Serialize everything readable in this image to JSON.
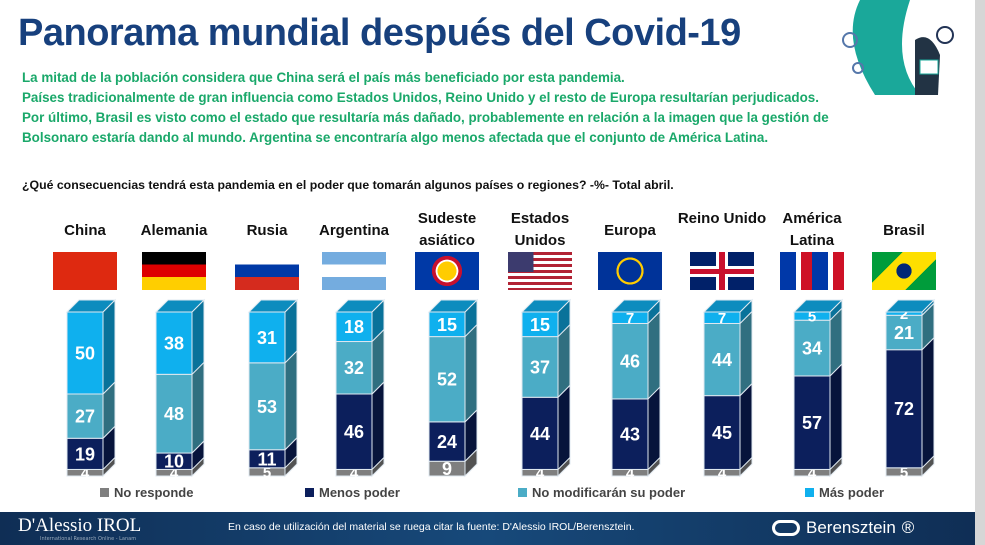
{
  "header": {
    "title": "Panorama mundial después del Covid-19",
    "subtitle": [
      "La mitad de la población considera que China será el país más beneficiado por esta  pandemia.",
      "Países tradicionalmente de gran influencia como Estados Unidos, Reino Unido y el resto de Europa resultarían perjudicados. Por último, Brasil es visto como el estado que resultaría más dañado, probablemente en relación a la imagen que la gestión de Bolsonaro estaría dando al mundo. Argentina se encontraría algo menos afectada que el conjunto de América Latina."
    ],
    "question": "¿Qué consecuencias tendrá esta pandemia en el poder que tomarán algunos países o regiones? -%- Total abril."
  },
  "chart_data": {
    "type": "bar",
    "stacked": true,
    "title": "",
    "categories": [
      "China",
      "Alemania",
      "Rusia",
      "Argentina",
      "Sudeste asiático",
      "Estados Unidos",
      "Europa",
      "Reino Unido",
      "América Latina",
      "Brasil"
    ],
    "series": [
      {
        "name": "No responde",
        "color": "#7f7f7f",
        "values": [
          4,
          4,
          5,
          4,
          9,
          4,
          4,
          4,
          4,
          5
        ]
      },
      {
        "name": "Menos poder",
        "color": "#0c1f5c",
        "values": [
          19,
          10,
          11,
          46,
          24,
          44,
          43,
          45,
          57,
          72
        ]
      },
      {
        "name": "No modificarán su poder",
        "color": "#4bacc6",
        "values": [
          27,
          48,
          53,
          32,
          52,
          37,
          46,
          44,
          34,
          21
        ]
      },
      {
        "name": "Más poder",
        "color": "#0fb0ee",
        "values": [
          50,
          38,
          31,
          18,
          15,
          15,
          7,
          7,
          5,
          2
        ]
      }
    ],
    "ylim": [
      0,
      100
    ],
    "legend": "bottom",
    "grid": false
  },
  "footer": {
    "left_logo": "D'Alessio IROL",
    "left_logo_sub": "International Research Online - Lanam",
    "note": "En caso de utilización del material se ruega citar la fuente: D'Alessio IROL/Berensztein.",
    "right_logo": "Berensztein"
  }
}
